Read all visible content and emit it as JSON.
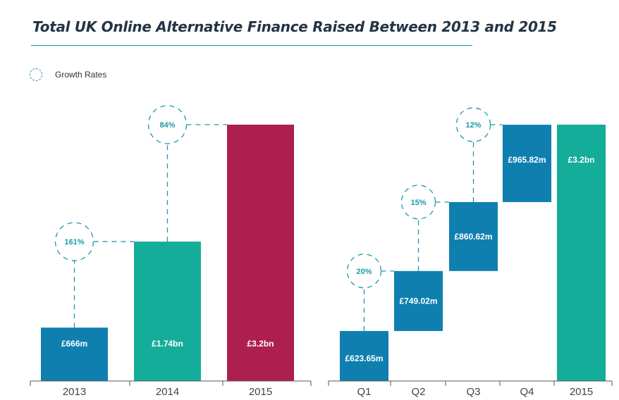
{
  "title": "Total UK Online Alternative Finance Raised Between 2013 and 2015",
  "legend": {
    "label": "Growth Rates"
  },
  "colors": {
    "blue": "#0f7fb0",
    "teal": "#14ad9a",
    "crimson": "#ad1f4e",
    "dash": "#1b9aa8",
    "axis": "#555555"
  },
  "chart_data": [
    {
      "type": "bar",
      "categories": [
        "2013",
        "2014",
        "2015"
      ],
      "values": [
        0.666,
        1.74,
        3.2
      ],
      "value_labels": [
        "£666m",
        "£1.74bn",
        "£3.2bn"
      ],
      "bar_colors": [
        "blue",
        "teal",
        "crimson"
      ],
      "unit": "£bn",
      "growth_rates": [
        {
          "from": "2013",
          "to": "2014",
          "label": "161%"
        },
        {
          "from": "2014",
          "to": "2015",
          "label": "84%"
        }
      ]
    },
    {
      "type": "bar",
      "subtype": "waterfall",
      "categories": [
        "Q1",
        "Q2",
        "Q3",
        "Q4",
        "2015"
      ],
      "values": [
        623.65,
        749.02,
        860.62,
        965.82,
        3200
      ],
      "value_labels": [
        "£623.65m",
        "£749.02m",
        "£860.62m",
        "£965.82m",
        "£3.2bn"
      ],
      "bar_colors": [
        "blue",
        "blue",
        "blue",
        "blue",
        "teal"
      ],
      "unit": "£m",
      "growth_rates": [
        {
          "from": "Q1",
          "to": "Q2",
          "label": "20%"
        },
        {
          "from": "Q2",
          "to": "Q3",
          "label": "15%"
        },
        {
          "from": "Q3",
          "to": "Q4",
          "label": "12%"
        }
      ]
    }
  ]
}
